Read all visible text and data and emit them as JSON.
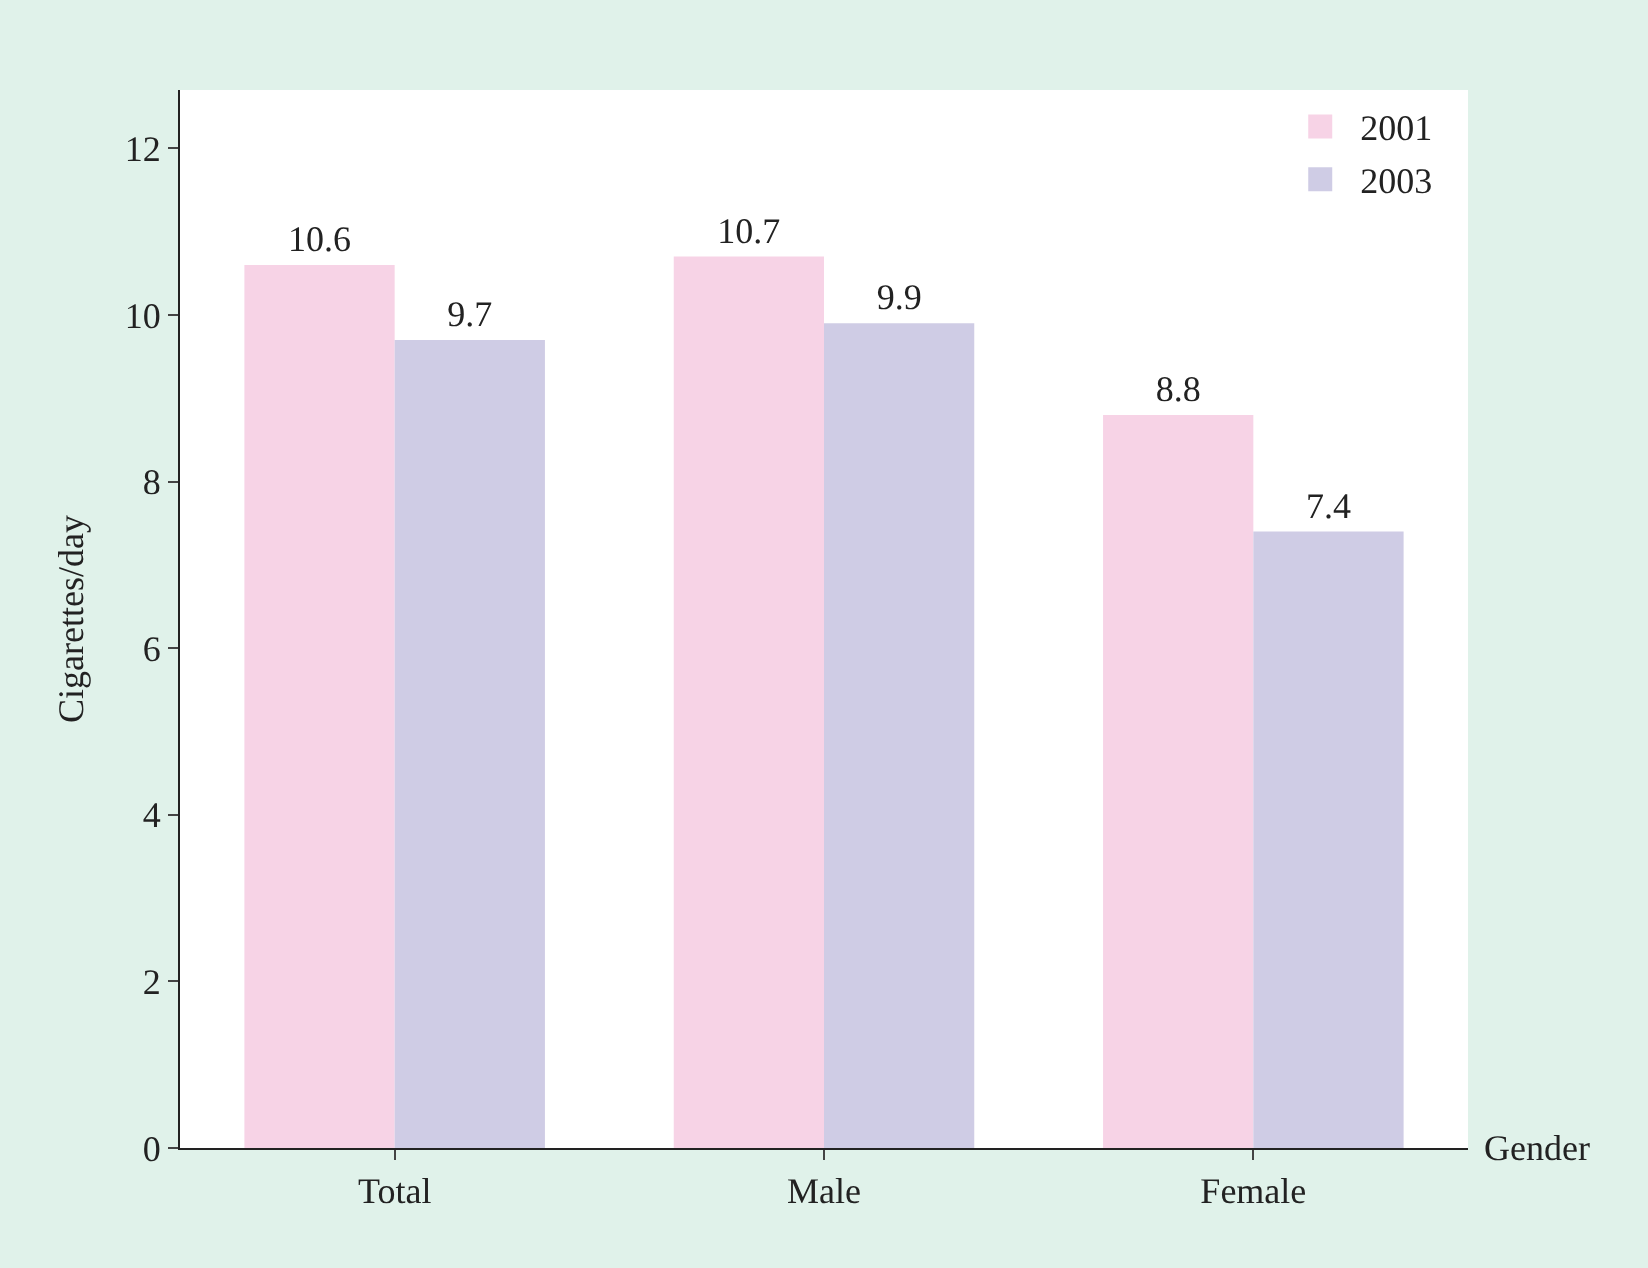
{
  "chart_data": {
    "type": "bar",
    "categories": [
      "Total",
      "Male",
      "Female"
    ],
    "series": [
      {
        "name": "2001",
        "color": "#f7d3e6",
        "values": [
          10.6,
          10.7,
          8.8
        ]
      },
      {
        "name": "2003",
        "color": "#cfcce5",
        "values": [
          9.7,
          9.9,
          7.4
        ]
      }
    ],
    "xlabel": "Gender",
    "ylabel": "Cigarettes/day",
    "ylim": [
      0,
      12.7
    ],
    "yticks": [
      0,
      2,
      4,
      6,
      8,
      10,
      12
    ],
    "data_labels": true,
    "legend": "top right"
  }
}
